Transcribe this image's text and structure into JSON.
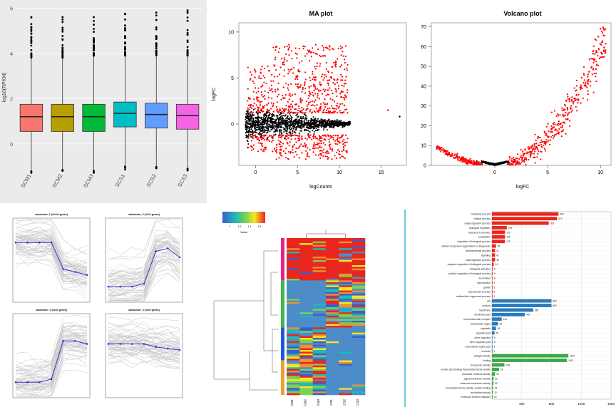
{
  "chart_data": [
    {
      "type": "box",
      "ylabel": "log10(RPKM)",
      "ylim": [
        -1.2,
        6.2
      ],
      "yticks": [
        0,
        2,
        4,
        6
      ],
      "categories": [
        "SCM1",
        "SCM2",
        "SCM3",
        "SCS1",
        "SCS2",
        "SCS3"
      ],
      "colors": [
        "#f8766d",
        "#b79f00",
        "#00ba38",
        "#00bfc4",
        "#619cff",
        "#f564e3"
      ],
      "boxes": [
        {
          "q1": 0.55,
          "median": 1.2,
          "q3": 1.75,
          "whisker_low": -1.15,
          "whisker_high": 3.8,
          "max": 5.6
        },
        {
          "q1": 0.55,
          "median": 1.2,
          "q3": 1.75,
          "whisker_low": -1.15,
          "whisker_high": 3.8,
          "max": 5.6
        },
        {
          "q1": 0.55,
          "median": 1.2,
          "q3": 1.75,
          "whisker_low": -1.15,
          "whisker_high": 3.9,
          "max": 5.6
        },
        {
          "q1": 0.75,
          "median": 1.35,
          "q3": 1.85,
          "whisker_low": -1.0,
          "whisker_high": 3.9,
          "max": 5.75
        },
        {
          "q1": 0.7,
          "median": 1.3,
          "q3": 1.8,
          "whisker_low": -1.0,
          "whisker_high": 3.9,
          "max": 5.8
        },
        {
          "q1": 0.65,
          "median": 1.25,
          "q3": 1.75,
          "whisker_low": -1.05,
          "whisker_high": 3.9,
          "max": 5.9
        }
      ]
    },
    {
      "type": "scatter",
      "title": "MA plot",
      "xlabel": "logCounts",
      "ylabel": "logFC",
      "xlim": [
        -2,
        18
      ],
      "ylim": [
        -4.5,
        11
      ],
      "xticks": [
        0,
        5,
        10,
        15
      ],
      "yticks": [
        0,
        5,
        10
      ],
      "series": [
        {
          "color": "#000000",
          "description_shape": "dense horizontal cloud near logFC 0, spreading from logCounts -1 to 17"
        },
        {
          "color": "#ff0000",
          "description_shape": "significant points above and below the black cloud"
        }
      ]
    },
    {
      "type": "scatter",
      "title": "Volcano plot",
      "xlabel": "logFC",
      "ylim": [
        0,
        72
      ],
      "xlim": [
        -6,
        11
      ],
      "xticks": [
        0,
        5,
        10
      ],
      "yticks": [
        0,
        10,
        20,
        30,
        40,
        50,
        60,
        70
      ],
      "series": [
        {
          "color": "#000000"
        },
        {
          "color": "#ff0000"
        }
      ]
    },
    {
      "type": "line",
      "subplots": [
        {
          "title": "subcluster_1 (##### genes)",
          "trend": [
            0.3,
            0.3,
            0.3,
            0.3,
            -0.15,
            -0.2,
            -0.25
          ]
        },
        {
          "title": "subcluster_2 (#### genes)",
          "trend": [
            -0.45,
            -0.45,
            -0.45,
            -0.4,
            0.15,
            0.2,
            0.05
          ]
        },
        {
          "title": "subcluster_3 (#### genes)",
          "trend": [
            -0.45,
            -0.45,
            -0.45,
            -0.4,
            0.25,
            0.25,
            0.2
          ]
        },
        {
          "title": "subcluster_4 (#### genes)",
          "trend": [
            0.2,
            0.2,
            0.2,
            0.2,
            0.15,
            0.12,
            0.1
          ]
        }
      ]
    },
    {
      "type": "heatmap",
      "legend_label": "Value",
      "legend_ticks": [
        "1",
        "1.2",
        "1.4",
        "1.6"
      ],
      "columns": [
        "CM1",
        "CM2",
        "CM3",
        "CS1",
        "CS2",
        "CS3"
      ],
      "row_groups": [
        {
          "color": "#e8208c",
          "fraction": 0.27,
          "left": "#e8261e",
          "right": "#e8261e"
        },
        {
          "color": "#3cb84a",
          "fraction": 0.3,
          "left": "#4c8cc8",
          "right": "mixed"
        },
        {
          "color": "#2255dd",
          "fraction": 0.21,
          "left": "mixed",
          "right": "#4c8cc8"
        },
        {
          "color": "#f0a030",
          "fraction": 0.22,
          "left": "mixed",
          "right": "#4c8cc8"
        }
      ]
    },
    {
      "type": "bar",
      "orientation": "horizontal",
      "xlim": [
        0,
        1600
      ],
      "xticks": [
        400,
        800,
        1200,
        1600
      ],
      "groups": [
        {
          "color": "#e8261e",
          "items": [
            {
              "label": "metabolic process",
              "value": 894
            },
            {
              "label": "cellular process",
              "value": 874
            },
            {
              "label": "single-organism process",
              "value": 763
            },
            {
              "label": "biological regulation",
              "value": 199
            },
            {
              "label": "response to stimulus",
              "value": 175
            },
            {
              "label": "localization",
              "value": 176
            },
            {
              "label": "regulation of biological process",
              "value": 175
            },
            {
              "label": "cellular component organization or biogenesis",
              "value": 55
            },
            {
              "label": "developmental process",
              "value": 41
            },
            {
              "label": "signaling",
              "value": 41
            },
            {
              "label": "multi-organism process",
              "value": 42
            },
            {
              "label": "negative regulation of biological process",
              "value": 24
            },
            {
              "label": "biological adhesion",
              "value": 9
            },
            {
              "label": "positive regulation of biological process",
              "value": 9
            },
            {
              "label": "locomotion",
              "value": 8
            },
            {
              "label": "reproduction",
              "value": 4
            },
            {
              "label": "growth",
              "value": 3
            },
            {
              "label": "reproductive process",
              "value": 3
            },
            {
              "label": "multicellular organismal process",
              "value": 3
            }
          ]
        },
        {
          "color": "#2b7bba",
          "items": [
            {
              "label": "cell",
              "value": 800
            },
            {
              "label": "cell part",
              "value": 800
            },
            {
              "label": "membrane",
              "value": 555
            },
            {
              "label": "membrane part",
              "value": 442
            },
            {
              "label": "macromolecular complex",
              "value": 131
            },
            {
              "label": "extracellular region",
              "value": 82
            },
            {
              "label": "organelle",
              "value": 55
            },
            {
              "label": "organelle part",
              "value": 35
            },
            {
              "label": "other organism",
              "value": 8
            },
            {
              "label": "other organism part",
              "value": 8
            },
            {
              "label": "extracellular region part",
              "value": 3
            },
            {
              "label": "nucleoid",
              "value": 3
            }
          ]
        },
        {
          "color": "#3ca84a",
          "items": [
            {
              "label": "catalytic activity",
              "value": 1027
            },
            {
              "label": "binding",
              "value": 1007
            },
            {
              "label": "transporter activity",
              "value": 168
            },
            {
              "label": "nucleic acid binding transcription factor activity",
              "value": 96
            },
            {
              "label": "structural molecule activity",
              "value": 40
            },
            {
              "label": "signal transducer activity",
              "value": 22
            },
            {
              "label": "molecular transducer activity",
              "value": 20
            },
            {
              "label": "transcription factor activity, protein binding",
              "value": 15
            },
            {
              "label": "antioxidant activity",
              "value": 12
            },
            {
              "label": "molecular function regulator",
              "value": 10
            }
          ]
        }
      ]
    }
  ]
}
